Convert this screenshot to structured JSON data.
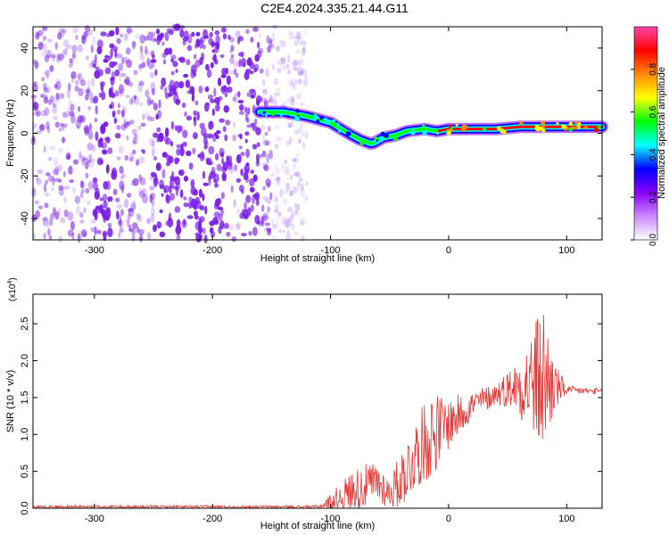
{
  "title": "C2E4.2024.335.21.44.G11",
  "chart_data": [
    {
      "type": "heatmap",
      "xlabel": "Height of straight line (km)",
      "ylabel": "Frequency (Hz)",
      "xlim": [
        -352,
        130
      ],
      "ylim": [
        -50,
        50
      ],
      "xticks": [
        -300,
        -200,
        -100,
        0,
        100
      ],
      "yticks": [
        -40,
        -20,
        0,
        20,
        40
      ],
      "colorbar": {
        "label": "Normalized spectral amplitude",
        "range": [
          0,
          1
        ],
        "ticks": [
          "0.0",
          "0.2",
          "0.4",
          "0.6",
          "0.8"
        ],
        "tick_values": [
          0,
          0.2,
          0.4,
          0.6,
          0.8
        ],
        "colors": [
          "#ffffff",
          "#cc88ff",
          "#8800ff",
          "#0000ff",
          "#00ffff",
          "#00ff00",
          "#ffff00",
          "#ff8800",
          "#ff0000",
          "#ff44aa"
        ]
      },
      "ridge": [
        {
          "x": -160,
          "y": 10
        },
        {
          "x": -140,
          "y": 10
        },
        {
          "x": -120,
          "y": 8
        },
        {
          "x": -100,
          "y": 5
        },
        {
          "x": -85,
          "y": 0
        },
        {
          "x": -75,
          "y": -3
        },
        {
          "x": -65,
          "y": -5
        },
        {
          "x": -55,
          "y": -2
        },
        {
          "x": -45,
          "y": -1
        },
        {
          "x": -35,
          "y": 1
        },
        {
          "x": -20,
          "y": 2
        },
        {
          "x": -10,
          "y": 1
        },
        {
          "x": 0,
          "y": 2
        },
        {
          "x": 20,
          "y": 2
        },
        {
          "x": 40,
          "y": 2
        },
        {
          "x": 60,
          "y": 3
        },
        {
          "x": 80,
          "y": 3
        },
        {
          "x": 100,
          "y": 3
        },
        {
          "x": 130,
          "y": 3
        }
      ],
      "noise_region_x": [
        -352,
        -120
      ],
      "noise_color": "#7a1fe8"
    },
    {
      "type": "line",
      "xlabel": "Height of straight line (km)",
      "ylabel": "SNR (10 * v/v)",
      "multiplier": "(x10",
      "multiplier_exp": "4",
      "multiplier_close": ")",
      "xlim": [
        -352,
        130
      ],
      "ylim": [
        0,
        2.9
      ],
      "xticks": [
        -300,
        -200,
        -100,
        0,
        100
      ],
      "yticks": [
        0.0,
        0.5,
        1.0,
        1.5,
        2.0,
        2.5
      ],
      "color": "#e53935",
      "envelope": [
        {
          "x": -352,
          "base": 0.02,
          "amp": 0.02
        },
        {
          "x": -110,
          "base": 0.02,
          "amp": 0.02
        },
        {
          "x": -100,
          "base": 0.08,
          "amp": 0.12
        },
        {
          "x": -80,
          "base": 0.25,
          "amp": 0.3
        },
        {
          "x": -60,
          "base": 0.35,
          "amp": 0.3
        },
        {
          "x": -50,
          "base": 0.2,
          "amp": 0.2
        },
        {
          "x": -40,
          "base": 0.4,
          "amp": 0.4
        },
        {
          "x": -25,
          "base": 0.8,
          "amp": 0.5
        },
        {
          "x": -15,
          "base": 1.0,
          "amp": 0.6
        },
        {
          "x": 0,
          "base": 1.15,
          "amp": 0.35
        },
        {
          "x": 20,
          "base": 1.4,
          "amp": 0.2
        },
        {
          "x": 40,
          "base": 1.55,
          "amp": 0.15
        },
        {
          "x": 55,
          "base": 1.65,
          "amp": 0.3
        },
        {
          "x": 70,
          "base": 1.7,
          "amp": 0.7
        },
        {
          "x": 80,
          "base": 1.75,
          "amp": 1.1
        },
        {
          "x": 90,
          "base": 1.65,
          "amp": 0.35
        },
        {
          "x": 100,
          "base": 1.6,
          "amp": 0.06
        },
        {
          "x": 130,
          "base": 1.58,
          "amp": 0.04
        }
      ]
    }
  ]
}
